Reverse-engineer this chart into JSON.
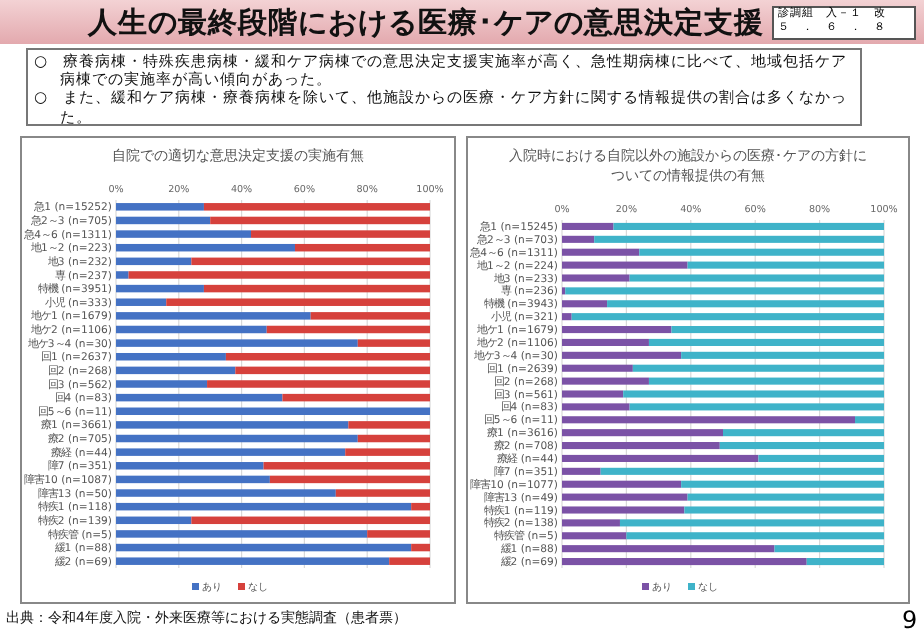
{
  "chart_data": [
    {
      "type": "bar",
      "orientation": "horizontal",
      "stacked": true,
      "title": "自院での適切な意思決定支援の実施有無",
      "annotations": [
        "人生の最終段階における医療･ケアの意思決定支援",
        "診調組　入－１　改",
        "５　．　６　．　８",
        "○　療養病棟・特殊疾患病棟・緩和ケア病棟での意思決定支援実施率が高く、急性期病棟に比べて、地域包括ケア病棟での実施率が高い傾向があった。",
        "○　また、緩和ケア病棟・療養病棟を除いて、他施設からの医療・ケア方針に関する情報提供の割合は多くなかった。",
        "出典：令和4年度入院・外来医療等における実態調査（患者票）",
        "9"
      ],
      "categories": [
        "急1 (n=15252)",
        "急2～3 (n=705)",
        "急4～6 (n=1311)",
        "地1～2 (n=223)",
        "地3 (n=232)",
        "専 (n=237)",
        "特機 (n=3951)",
        "小児 (n=333)",
        "地ケ1 (n=1679)",
        "地ケ2 (n=1106)",
        "地ケ3～4 (n=30)",
        "回1 (n=2637)",
        "回2 (n=268)",
        "回3 (n=562)",
        "回4 (n=83)",
        "回5～6 (n=11)",
        "療1 (n=3661)",
        "療2 (n=705)",
        "療経 (n=44)",
        "障7 (n=351)",
        "障害10 (n=1087)",
        "障害13 (n=50)",
        "特疾1 (n=118)",
        "特疾2 (n=139)",
        "特疾管 (n=5)",
        "緩1 (n=88)",
        "緩2 (n=69)"
      ],
      "series": [
        {
          "name": "あり",
          "color": "#4472c4",
          "values": [
            28,
            30,
            43,
            57,
            24,
            4,
            28,
            16,
            62,
            48,
            77,
            35,
            38,
            29,
            53,
            100,
            74,
            77,
            73,
            47,
            49,
            70,
            94,
            24,
            80,
            94,
            87
          ]
        },
        {
          "name": "なし",
          "color": "#d6413c",
          "values": [
            72,
            70,
            57,
            43,
            76,
            96,
            72,
            84,
            38,
            52,
            23,
            65,
            62,
            71,
            47,
            0,
            26,
            23,
            27,
            53,
            51,
            30,
            6,
            76,
            20,
            6,
            13
          ]
        }
      ],
      "xlim": [
        0,
        100
      ],
      "xticks": [
        {
          "value": 0,
          "label": "0%"
        },
        {
          "value": 20,
          "label": "20%"
        },
        {
          "value": 40,
          "label": "40%"
        },
        {
          "value": 60,
          "label": "60%"
        },
        {
          "value": 80,
          "label": "80%"
        },
        {
          "value": 100,
          "label": "100%"
        }
      ],
      "grid": "x",
      "legend": "bottom"
    },
    {
      "type": "bar",
      "orientation": "horizontal",
      "stacked": true,
      "title": "入院時における自院以外の施設からの医療･ケアの方針についての情報提供の有無",
      "categories": [
        "急1 (n=15245)",
        "急2～3 (n=703)",
        "急4～6 (n=1311)",
        "地1～2 (n=224)",
        "地3 (n=233)",
        "専 (n=236)",
        "特機 (n=3943)",
        "小児 (n=321)",
        "地ケ1 (n=1679)",
        "地ケ2 (n=1106)",
        "地ケ3～4 (n=30)",
        "回1 (n=2639)",
        "回2 (n=268)",
        "回3 (n=561)",
        "回4 (n=83)",
        "回5～6 (n=11)",
        "療1 (n=3616)",
        "療2 (n=708)",
        "療経 (n=44)",
        "障7 (n=351)",
        "障害10 (n=1077)",
        "障害13 (n=49)",
        "特疾1 (n=119)",
        "特疾2 (n=138)",
        "特疾管 (n=5)",
        "緩1 (n=88)",
        "緩2 (n=69)"
      ],
      "series": [
        {
          "name": "あり",
          "color": "#7b52a6",
          "values": [
            16,
            10,
            24,
            39,
            21,
            1,
            14,
            3,
            34,
            27,
            37,
            22,
            27,
            19,
            21,
            91,
            50,
            49,
            61,
            12,
            37,
            39,
            38,
            18,
            20,
            66,
            76
          ]
        },
        {
          "name": "なし",
          "color": "#3fb3c9",
          "values": [
            84,
            90,
            76,
            61,
            79,
            99,
            86,
            97,
            66,
            73,
            63,
            78,
            73,
            81,
            79,
            9,
            50,
            51,
            39,
            88,
            63,
            61,
            62,
            82,
            80,
            34,
            24
          ]
        }
      ],
      "xlim": [
        0,
        100
      ],
      "xticks": [
        {
          "value": 0,
          "label": "0%"
        },
        {
          "value": 20,
          "label": "20%"
        },
        {
          "value": 40,
          "label": "40%"
        },
        {
          "value": 60,
          "label": "60%"
        },
        {
          "value": 80,
          "label": "80%"
        },
        {
          "value": 100,
          "label": "100%"
        }
      ],
      "grid": "x",
      "legend": "bottom"
    }
  ]
}
